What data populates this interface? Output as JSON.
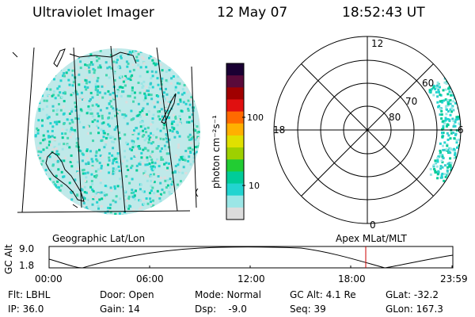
{
  "header": {
    "title": "Ultraviolet Imager",
    "date": "12 May 07",
    "time": "18:52:43 UT"
  },
  "globe": {
    "caption": "Geographic Lat/Lon",
    "fill_color": "#33cccc"
  },
  "colorbar": {
    "unit_label": "photon cm⁻²s⁻¹",
    "ticks": [
      "100",
      "10"
    ],
    "colors": [
      "#1a0033",
      "#5a0a3a",
      "#a00000",
      "#e01010",
      "#ff6a00",
      "#ffb000",
      "#e0e000",
      "#9ed000",
      "#22cc33",
      "#00cc99",
      "#22d4d0",
      "#9be6e6",
      "#dcdcdc"
    ]
  },
  "polar": {
    "caption": "Apex MLat/MLT",
    "mlt_labels": {
      "top": "12",
      "left": "18",
      "right": "6",
      "bottom": "0"
    },
    "lat_labels": [
      "80",
      "70",
      "60"
    ],
    "fill_color": "#33cccc"
  },
  "altplot": {
    "axis_label": "GC Alt",
    "y_ticks": [
      "9.0",
      "1.8"
    ],
    "x_ticks": [
      "00:00",
      "06:00",
      "12:00",
      "18:00",
      "23:59"
    ],
    "current_marker_color": "#cc0000"
  },
  "info": {
    "row1": [
      "Flt: LBHL",
      "Door: Open",
      "Mode: Normal",
      "GC Alt: 4.1 Re",
      "GLat: -32.2"
    ],
    "row2": [
      "IP: 36.0",
      "Gain: 14",
      "Dsp:    -9.0",
      "Seq: 39",
      "GLon: 167.3"
    ]
  }
}
